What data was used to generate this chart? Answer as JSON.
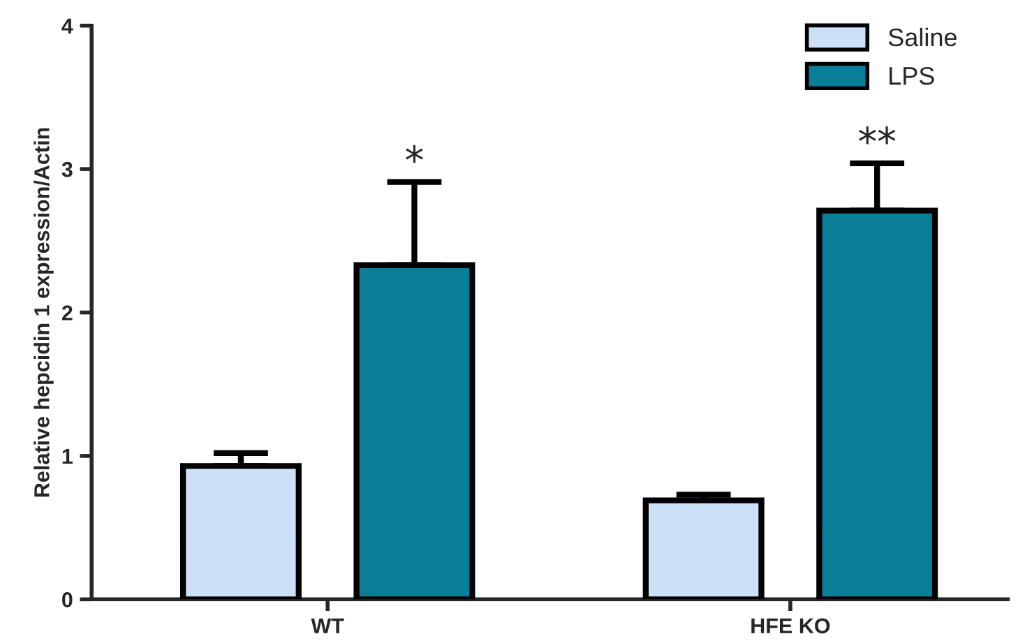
{
  "chart_data": {
    "type": "bar",
    "ylabel": "Relative hepcidin 1 expression/Actin",
    "categories": [
      "WT",
      "HFE KO"
    ],
    "series": [
      {
        "name": "Saline",
        "color": "#cce0f7",
        "values": [
          0.93,
          0.69
        ],
        "errors": [
          [
            0.93,
            1.02
          ],
          [
            0.69,
            0.73
          ]
        ]
      },
      {
        "name": "LPS",
        "color": "#0a7d99",
        "values": [
          2.33,
          2.71
        ],
        "errors": [
          [
            2.33,
            2.91
          ],
          [
            2.71,
            3.04
          ]
        ]
      }
    ],
    "annotations": [
      "*",
      "**"
    ],
    "ylim": [
      0,
      4
    ],
    "yticks": [
      0,
      1,
      2,
      3,
      4
    ],
    "grid": false,
    "legend": "top right"
  }
}
